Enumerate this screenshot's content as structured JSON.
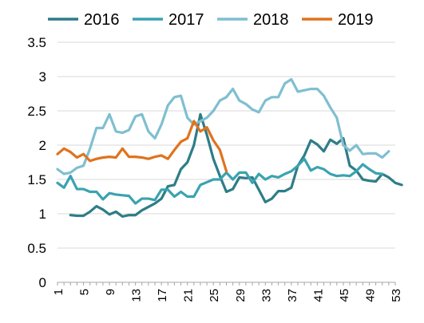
{
  "chart_data": {
    "type": "line",
    "title": "",
    "xlabel": "",
    "ylabel": "",
    "xlim": [
      1,
      53
    ],
    "ylim": [
      0,
      3.5
    ],
    "y_ticks": [
      "0",
      "0.5",
      "1",
      "1.5",
      "2",
      "2.5",
      "3",
      "3.5"
    ],
    "x_ticks": [
      "1",
      "5",
      "9",
      "13",
      "17",
      "21",
      "25",
      "29",
      "33",
      "37",
      "41",
      "45",
      "49",
      "53"
    ],
    "grid": "horizontal",
    "legend_position": "top",
    "series": [
      {
        "name": "2016",
        "color": "#2E7D87",
        "start_week": 3,
        "values": [
          0.98,
          0.97,
          0.97,
          1.03,
          1.11,
          1.06,
          0.99,
          1.03,
          0.96,
          0.98,
          0.98,
          1.05,
          1.1,
          1.15,
          1.22,
          1.4,
          1.42,
          1.65,
          1.75,
          2.0,
          2.45,
          2.15,
          1.8,
          1.55,
          1.32,
          1.36,
          1.53,
          1.52,
          1.53,
          1.35,
          1.17,
          1.22,
          1.33,
          1.33,
          1.38,
          1.7,
          1.85,
          2.07,
          2.01,
          1.91,
          2.08,
          2.02,
          2.1,
          1.7,
          1.63,
          1.5,
          1.48,
          1.47,
          1.58,
          1.53,
          1.45,
          1.42
        ]
      },
      {
        "name": "2017",
        "color": "#3AA3B0",
        "start_week": 1,
        "values": [
          1.45,
          1.38,
          1.55,
          1.36,
          1.36,
          1.32,
          1.32,
          1.21,
          1.3,
          1.28,
          1.27,
          1.26,
          1.15,
          1.22,
          1.22,
          1.2,
          1.35,
          1.35,
          1.25,
          1.32,
          1.25,
          1.25,
          1.42,
          1.46,
          1.5,
          1.5,
          1.6,
          1.5,
          1.6,
          1.6,
          1.45,
          1.58,
          1.5,
          1.55,
          1.53,
          1.58,
          1.62,
          1.7,
          1.8,
          1.63,
          1.68,
          1.65,
          1.58,
          1.55,
          1.56,
          1.55,
          1.62,
          1.72,
          1.65,
          1.59,
          1.58
        ]
      },
      {
        "name": "2018",
        "color": "#7FBFD0",
        "start_week": 1,
        "values": [
          1.65,
          1.58,
          1.6,
          1.67,
          1.7,
          1.95,
          2.25,
          2.25,
          2.45,
          2.2,
          2.18,
          2.22,
          2.42,
          2.45,
          2.2,
          2.1,
          2.3,
          2.58,
          2.7,
          2.72,
          2.4,
          2.3,
          2.35,
          2.4,
          2.5,
          2.65,
          2.7,
          2.82,
          2.65,
          2.6,
          2.52,
          2.48,
          2.65,
          2.7,
          2.7,
          2.9,
          2.96,
          2.78,
          2.8,
          2.82,
          2.82,
          2.72,
          2.55,
          2.4,
          2.0,
          1.92,
          2.0,
          1.87,
          1.88,
          1.88,
          1.82,
          1.91
        ]
      },
      {
        "name": "2019",
        "color": "#E0731E",
        "start_week": 1,
        "values": [
          1.87,
          1.95,
          1.9,
          1.82,
          1.87,
          1.77,
          1.8,
          1.82,
          1.83,
          1.82,
          1.95,
          1.83,
          1.83,
          1.82,
          1.8,
          1.83,
          1.85,
          1.8,
          1.93,
          2.05,
          2.1,
          2.35,
          2.2,
          2.26,
          2.07,
          1.93,
          1.62
        ]
      }
    ]
  }
}
